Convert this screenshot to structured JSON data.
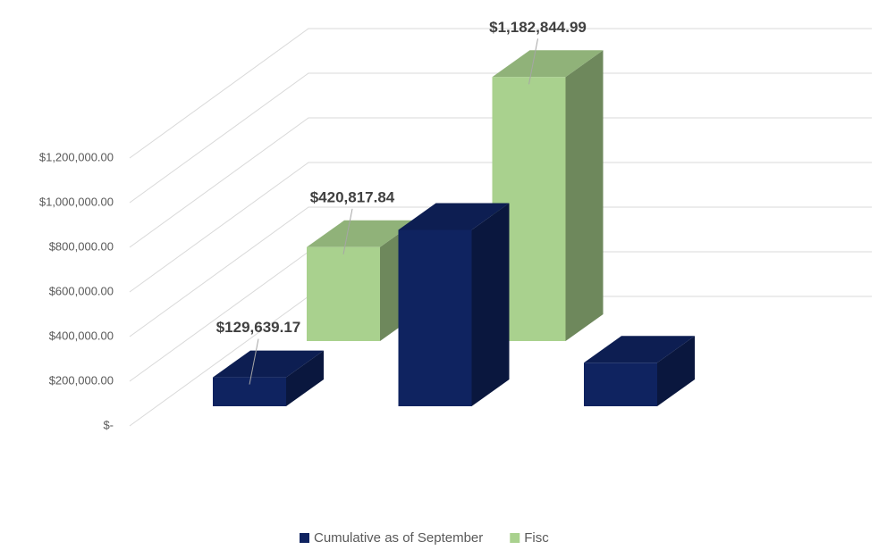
{
  "chart_data": {
    "type": "bar3d",
    "categories": [
      null,
      null,
      null
    ],
    "series": [
      {
        "name": "Cumulative as of September",
        "color": "#0f2360",
        "values": [
          129639.17,
          790000,
          195000
        ],
        "value_labels": [
          "$129,639.17",
          null,
          null
        ]
      },
      {
        "name": "Fisc",
        "color": "#a9d18e",
        "values": [
          420817.84,
          1182844.99,
          null
        ],
        "value_labels": [
          "$420,817.84",
          "$1,182,844.99",
          null
        ]
      }
    ],
    "ylim": [
      0,
      1400000
    ],
    "yticks": [
      {
        "value": 0,
        "label": "$-"
      },
      {
        "value": 200000,
        "label": "$200,000.00"
      },
      {
        "value": 400000,
        "label": "$400,000.00"
      },
      {
        "value": 600000,
        "label": "$600,000.00"
      },
      {
        "value": 800000,
        "label": "$800,000.00"
      },
      {
        "value": 1000000,
        "label": "$1,000,000.00"
      },
      {
        "value": 1200000,
        "label": "$1,200,000.00"
      }
    ],
    "grid": true,
    "legend": "bottom"
  }
}
